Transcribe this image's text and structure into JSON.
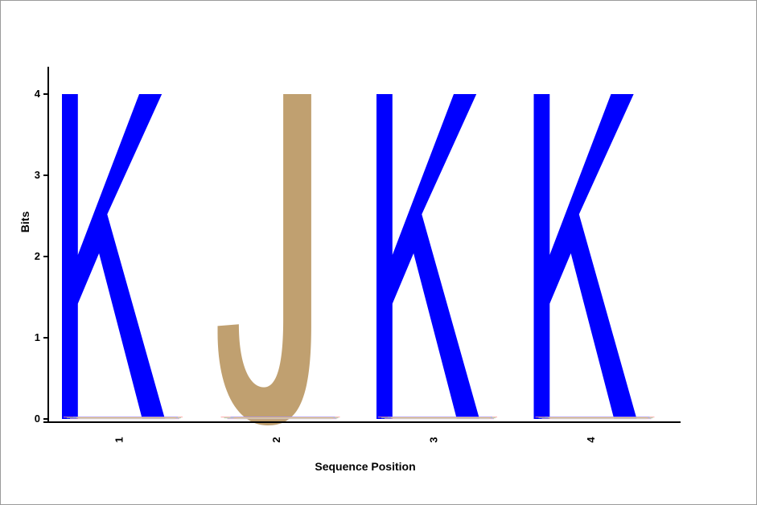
{
  "chart_data": {
    "type": "sequence-logo",
    "xlabel": "Sequence Position",
    "ylabel": "Bits",
    "ylim": [
      0,
      4.3
    ],
    "y_ticks": [
      0,
      1,
      2,
      3,
      4
    ],
    "positions": [
      {
        "x_label": "1",
        "letter": "K",
        "bits": 4.0,
        "color": "#0000FF"
      },
      {
        "x_label": "2",
        "letter": "J",
        "bits": 4.0,
        "color": "#C0A070"
      },
      {
        "x_label": "3",
        "letter": "K",
        "bits": 4.0,
        "color": "#0000FF"
      },
      {
        "x_label": "4",
        "letter": "K",
        "bits": 4.0,
        "color": "#0000FF"
      }
    ],
    "grid": false
  }
}
